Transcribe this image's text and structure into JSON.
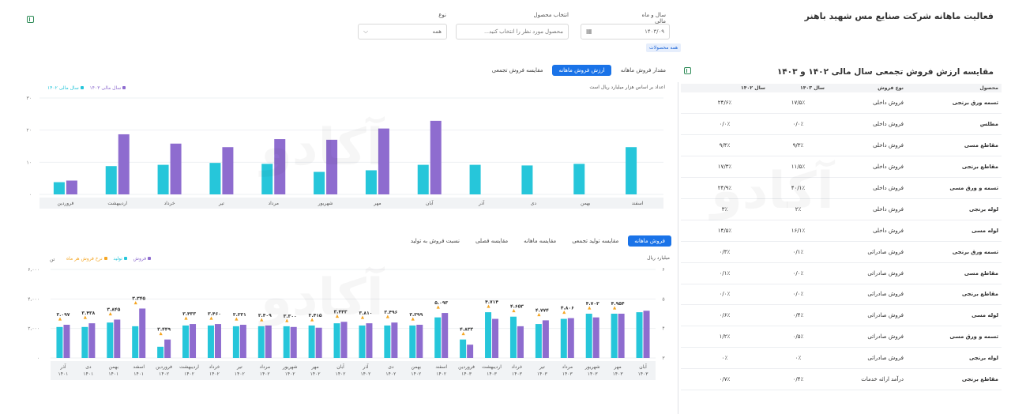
{
  "header": {
    "title": "فعالیت ماهانه شرکت صنایع مس شهید باهنر"
  },
  "filters": {
    "year_month": {
      "label": "سال و ماه مالی",
      "value": "۱۴۰۳/۰۹"
    },
    "product": {
      "label": "انتخاب محصول",
      "placeholder": "محصول مورد نظر را انتخاب کنید..."
    },
    "type": {
      "label": "نوع",
      "value": "همه"
    },
    "chip": "همه محصولات"
  },
  "top_chart": {
    "tabs": [
      "مقدار فروش ماهانه",
      "ارزش فروش ماهانه",
      "مقایسه فروش تجمعی"
    ],
    "active_tab": 1,
    "note": "اعداد بر اساس هزار میلیارد ریال است",
    "legend": [
      {
        "name": "سال مالی ۱۴۰۳",
        "color": "#8e6ccf"
      },
      {
        "name": "سال مالی ۱۴۰۲",
        "color": "#26c6da"
      }
    ]
  },
  "bottom_chart": {
    "tabs": [
      "فروش ماهانه",
      "مقایسه تولید تجمعی",
      "مقایسه ماهانه",
      "مقایسه فصلی",
      "نسبت فروش به تولید"
    ],
    "active_tab": 0,
    "left_axis_title": "تن",
    "right_axis_title": "میلیارد ریال",
    "legend": [
      {
        "name": "فروش",
        "color": "#8e6ccf"
      },
      {
        "name": "تولید",
        "color": "#26c6da"
      },
      {
        "name": "نرخ فروش هر ماه",
        "color": "#f5a623"
      }
    ]
  },
  "chart_data": [
    {
      "type": "bar",
      "categories": [
        "اسفند",
        "بهمن",
        "دی",
        "آذر",
        "آبان",
        "مهر",
        "شهریور",
        "مرداد",
        "تیر",
        "خرداد",
        "اردیبهشت",
        "فروردین"
      ],
      "series": [
        {
          "name": "سال مالی ۱۴۰۲",
          "values": [
            14.7,
            9.5,
            9,
            9.2,
            9.2,
            7.5,
            7,
            9.5,
            9.8,
            9.2,
            8.8,
            3.8
          ]
        },
        {
          "name": "سال مالی ۱۴۰۳",
          "values": [
            null,
            null,
            null,
            null,
            22.9,
            20.5,
            17,
            17.2,
            14.7,
            15.8,
            18.7,
            4.3
          ]
        }
      ],
      "y_ticks": [
        "۳۰",
        "۲۰",
        "۱۰",
        "۰"
      ],
      "ylim": [
        0,
        30
      ],
      "grid": true
    },
    {
      "type": "bar",
      "categories": [
        [
          "آذر",
          "۱۴۰۱"
        ],
        [
          "دی",
          "۱۴۰۱"
        ],
        [
          "بهمن",
          "۱۴۰۱"
        ],
        [
          "اسفند",
          "۱۴۰۱"
        ],
        [
          "فروردین",
          "۱۴۰۲"
        ],
        [
          "اردیبهشت",
          "۱۴۰۲"
        ],
        [
          "خرداد",
          "۱۴۰۲"
        ],
        [
          "تیر",
          "۱۴۰۲"
        ],
        [
          "مرداد",
          "۱۴۰۲"
        ],
        [
          "شهریور",
          "۱۴۰۲"
        ],
        [
          "مهر",
          "۱۴۰۲"
        ],
        [
          "آبان",
          "۱۴۰۲"
        ],
        [
          "آذر",
          "۱۴۰۲"
        ],
        [
          "دی",
          "۱۴۰۲"
        ],
        [
          "بهمن",
          "۱۴۰۲"
        ],
        [
          "اسفند",
          "۱۴۰۲"
        ],
        [
          "فروردین",
          "۱۴۰۳"
        ],
        [
          "اردیبهشت",
          "۱۴۰۳"
        ],
        [
          "خرداد",
          "۱۴۰۳"
        ],
        [
          "تیر",
          "۱۴۰۳"
        ],
        [
          "مرداد",
          "۱۴۰۳"
        ],
        [
          "شهریور",
          "۱۴۰۳"
        ],
        [
          "مهر",
          "۱۴۰۳"
        ],
        [
          "آبان",
          "۱۴۰۳"
        ]
      ],
      "series": [
        {
          "name": "تولید",
          "values": [
            2100,
            2100,
            2400,
            2150,
            760,
            2200,
            2200,
            2150,
            2150,
            2150,
            2200,
            2350,
            2200,
            2200,
            2200,
            2750,
            1250,
            3100,
            2800,
            2300,
            2650,
            3000,
            3000,
            3100
          ]
        },
        {
          "name": "فروش",
          "values": [
            2250,
            2350,
            2600,
            3350,
            1250,
            2300,
            2300,
            2250,
            2200,
            2100,
            2050,
            2450,
            2350,
            2400,
            2250,
            3050,
            900,
            2650,
            2150,
            2550,
            2700,
            2750,
            3000,
            3200
          ]
        },
        {
          "name": "نرخ فروش هر ماه",
          "labels": [
            "۳.۰۹۷",
            "۳.۴۳۸",
            "۳.۸۴۵",
            "۳.۳۴۵",
            "۳.۴۴۹",
            "۳.۴۳۳",
            "۳.۴۶۰",
            "۳.۳۳۱",
            "۳.۴۰۹",
            "۳.۳۰۰",
            "۳.۴۱۵",
            "۳.۴۴۳",
            "۳.۸۱۰",
            "۳.۴۹۶",
            "۳.۳۹۹",
            "۵.۰۹۳",
            "۴.۸۳۳",
            "۴.۷۱۴",
            "۴.۶۵۳",
            "۴.۷۷۴",
            "۴.۸۰۶",
            "۴.۷۰۳",
            "۴.۹۵۴",
            ""
          ]
        }
      ],
      "left_ticks": [
        "۶,۰۰۰",
        "۴,۰۰۰",
        "۲,۰۰۰",
        "۰"
      ],
      "right_ticks": [
        "۶",
        "۵",
        "۴",
        "۳"
      ],
      "ylim": [
        0,
        6000
      ],
      "grid": true
    }
  ],
  "table": {
    "title": "مقایسه ارزش فروش تجمعی سال مالی ۱۴۰۲ و ۱۴۰۳",
    "headers": [
      "محصول",
      "نوع فروش",
      "سال ۱۴۰۳",
      "سال ۱۴۰۲"
    ],
    "rows": [
      [
        "تسمه ورق برنجی",
        "فروش داخلی",
        "۱۷/۵٪",
        "۲۴/۶٪"
      ],
      [
        "مطلس",
        "فروش داخلی",
        "۰/۰٪",
        "۰/۰٪"
      ],
      [
        "مقاطع مسی",
        "فروش داخلی",
        "۹/۳٪",
        "۹/۴٪"
      ],
      [
        "مقاطع برنجی",
        "فروش داخلی",
        "۱۱/۵٪",
        "۱۷/۳٪"
      ],
      [
        "تسمه و ورق مسی",
        "فروش داخلی",
        "۴۰/۱٪",
        "۲۴/۹٪"
      ],
      [
        "لوله برنجی",
        "فروش داخلی",
        "۲٪",
        "۳٪"
      ],
      [
        "لوله مسی",
        "فروش داخلی",
        "۱۶/۱٪",
        "۱۴/۵٪"
      ],
      [
        "تسمه ورق برنجی",
        "فروش صادراتی",
        "۰/۱٪",
        "۰/۳٪"
      ],
      [
        "مقاطع مسی",
        "فروش صادراتی",
        "۰/۰٪",
        "۰/۱٪"
      ],
      [
        "مقاطع برنجی",
        "فروش صادراتی",
        "۰/۰٪",
        "۰/۰٪"
      ],
      [
        "لوله مسی",
        "فروش صادراتی",
        "۰/۴٪",
        "۰/۶٪"
      ],
      [
        "تسمه و ورق مسی",
        "فروش صادراتی",
        "۰/۵٪",
        "۱/۲٪"
      ],
      [
        "لوله برنجی",
        "فروش صادراتی",
        "۰٪",
        "۰٪"
      ],
      [
        "مقاطع برنجی",
        "درآمد ارائه خدمات",
        "۰/۴٪",
        "۰/۷٪"
      ]
    ]
  }
}
